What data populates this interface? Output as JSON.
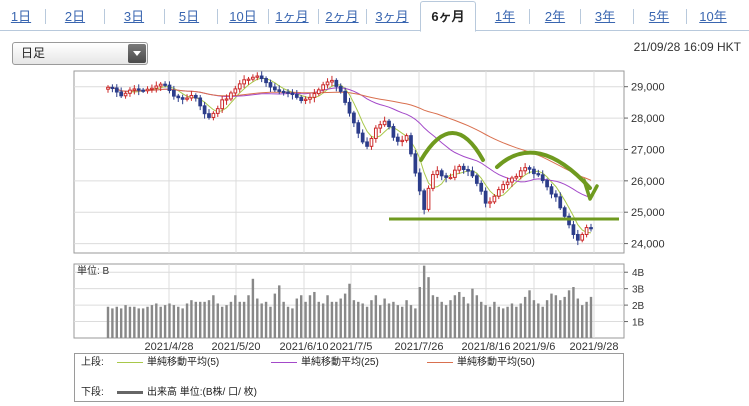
{
  "tabs": [
    {
      "label": "1日",
      "active": false
    },
    {
      "label": "2日",
      "active": false
    },
    {
      "label": "3日",
      "active": false
    },
    {
      "label": "5日",
      "active": false
    },
    {
      "label": "10日",
      "active": false
    },
    {
      "label": "1ヶ月",
      "active": false
    },
    {
      "label": "2ヶ月",
      "active": false
    },
    {
      "label": "3ヶ月",
      "active": false
    },
    {
      "label": "6ヶ月",
      "active": true
    },
    {
      "label": "1年",
      "active": false
    },
    {
      "label": "2年",
      "active": false
    },
    {
      "label": "3年",
      "active": false
    },
    {
      "label": "5年",
      "active": false
    },
    {
      "label": "10年",
      "active": false
    }
  ],
  "selector": {
    "value": "日足"
  },
  "timestamp": "21/09/28 16:09 HKT",
  "chart_data": {
    "type": "candlestick",
    "price": {
      "y_ticks": [
        24000,
        25000,
        26000,
        27000,
        28000,
        29000
      ],
      "y_tick_labels": [
        "24,000",
        "25,000",
        "26,000",
        "27,000",
        "28,000",
        "29,000"
      ],
      "ylim": [
        23700,
        29500
      ],
      "close": [
        28980,
        28960,
        28830,
        28710,
        28790,
        28890,
        28930,
        28890,
        28870,
        28920,
        28950,
        29020,
        29080,
        29050,
        28880,
        28700,
        28650,
        28600,
        28640,
        28720,
        28640,
        28390,
        28140,
        28020,
        28150,
        28300,
        28580,
        28610,
        28800,
        28930,
        29090,
        29220,
        29240,
        29300,
        29340,
        29260,
        29130,
        28990,
        28900,
        28850,
        28830,
        28800,
        28750,
        28660,
        28560,
        28600,
        28660,
        28780,
        28900,
        29060,
        29150,
        29200,
        29010,
        28850,
        28500,
        28160,
        27850,
        27520,
        27240,
        27100,
        27350,
        27680,
        27790,
        27900,
        27730,
        27390,
        27260,
        27290,
        27440,
        26860,
        26250,
        25680,
        25090,
        25760,
        26200,
        26320,
        26160,
        26110,
        26110,
        26340,
        26460,
        26360,
        26310,
        26160,
        25920,
        25670,
        25290,
        25330,
        25510,
        25720,
        25880,
        25960,
        26090,
        26140,
        26320,
        26420,
        26370,
        26230,
        26190,
        26010,
        25810,
        25580,
        25490,
        25140,
        24870,
        24600,
        24290,
        24110,
        24290,
        24510,
        24500
      ]
    },
    "ma_series": [
      {
        "name": "単純移動平均(5)",
        "color": "#a8c84a",
        "window": 5
      },
      {
        "name": "単純移動平均(25)",
        "color": "#a349c9",
        "window": 25
      },
      {
        "name": "単純移動平均(50)",
        "color": "#d9704f",
        "window": 50
      }
    ],
    "volume": {
      "label": "単位: B",
      "y_ticks": [
        1,
        2,
        3,
        4
      ],
      "y_tick_labels": [
        "1B",
        "2B",
        "3B",
        "4B"
      ],
      "ylim": [
        0,
        4.5
      ],
      "values": [
        1.9,
        1.8,
        1.9,
        1.8,
        2.0,
        1.9,
        1.9,
        1.8,
        1.8,
        1.9,
        2.0,
        2.1,
        1.9,
        2.0,
        2.1,
        2.0,
        1.9,
        1.8,
        2.1,
        2.3,
        2.2,
        2.2,
        2.2,
        2.3,
        2.6,
        2.1,
        1.9,
        2.0,
        2.2,
        2.6,
        2.2,
        2.2,
        2.6,
        3.6,
        2.4,
        2.1,
        2.2,
        1.9,
        2.7,
        3.2,
        2.2,
        1.9,
        1.8,
        2.4,
        2.6,
        2.2,
        2.6,
        2.8,
        2.2,
        2.1,
        2.6,
        2.2,
        2.2,
        2.4,
        2.7,
        3.3,
        2.3,
        2.2,
        2.1,
        1.9,
        2.3,
        2.6,
        2.0,
        2.4,
        2.1,
        2.2,
        2.0,
        1.9,
        2.3,
        2.0,
        1.8,
        3.1,
        4.4,
        3.7,
        2.6,
        2.5,
        2.2,
        2.0,
        2.3,
        2.6,
        2.8,
        2.5,
        2.1,
        3.0,
        2.6,
        2.2,
        2.0,
        1.9,
        2.2,
        1.9,
        1.8,
        1.9,
        2.1,
        1.9,
        2.1,
        2.5,
        2.9,
        2.3,
        2.1,
        1.9,
        2.3,
        2.7,
        2.6,
        2.3,
        2.5,
        2.9,
        3.1,
        2.4,
        2.0,
        2.2,
        2.5
      ]
    },
    "x_tick_labels": [
      "2021/4/28",
      "2021/5/20",
      "2021/6/10",
      "2021/7/5",
      "2021/7/26",
      "2021/8/16",
      "2021/9/6",
      "2021/9/28"
    ]
  },
  "legend": {
    "upper_label": "上段:",
    "lower_label": "下段:",
    "ma5": "単純移動平均(5)",
    "ma25": "単純移動平均(25)",
    "ma50": "単純移動平均(50)",
    "volume": "出来高 単位:(B株/ 口/ 枚)"
  },
  "colors": {
    "candle_up": "#cc2a2a",
    "candle_down": "#2c3d8a",
    "volume_bar": "#888888",
    "annotation": "#6f9a1f",
    "grid": "#dcdcdc"
  }
}
